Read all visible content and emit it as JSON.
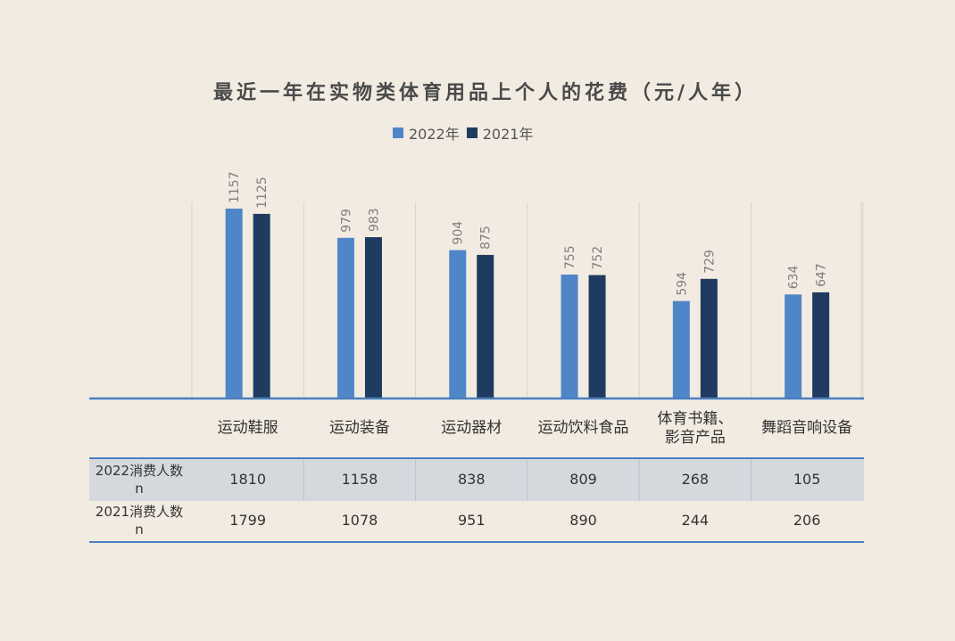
{
  "title": "最近一年在实物类体育用品上个人的花费（元/人年）",
  "colors": {
    "s2022": "#4e86c8",
    "s2021": "#1f3b60",
    "background": "#f2ebe1",
    "table_line": "#4a7fc1",
    "row_shade": "#d5d9de"
  },
  "chart_data": {
    "type": "bar",
    "title": "最近一年在实物类体育用品上个人的花费（元/人年）",
    "categories": [
      "运动鞋服",
      "运动装备",
      "运动器材",
      "运动饮料食品",
      "体育书籍、影音产品",
      "舞蹈音响设备"
    ],
    "category_lines": [
      [
        "运动鞋服"
      ],
      [
        "运动装备"
      ],
      [
        "运动器材"
      ],
      [
        "运动饮料食品"
      ],
      [
        "体育书籍、",
        "影音产品"
      ],
      [
        "舞蹈音响设备"
      ]
    ],
    "series": [
      {
        "name": "2022年",
        "values": [
          1157,
          979,
          904,
          755,
          594,
          634
        ]
      },
      {
        "name": "2021年",
        "values": [
          1125,
          983,
          875,
          752,
          729,
          647
        ]
      }
    ],
    "ylim": [
      0,
      1200
    ],
    "legend": "top-center",
    "grid": false
  },
  "table": {
    "rows": [
      {
        "label_lines": [
          "2022消费人数",
          "n"
        ],
        "values": [
          "1810",
          "1158",
          "838",
          "809",
          "268",
          "105"
        ]
      },
      {
        "label_lines": [
          "2021消费人数",
          "n"
        ],
        "values": [
          "1799",
          "1078",
          "951",
          "890",
          "244",
          "206"
        ]
      }
    ]
  }
}
